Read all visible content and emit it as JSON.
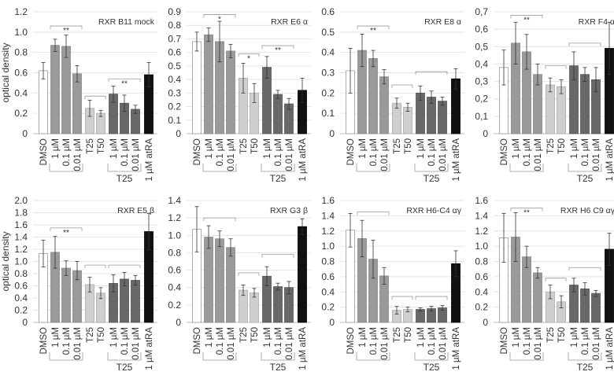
{
  "colors": {
    "dmso": "#ffffff",
    "drug": "#9a9a9a",
    "t": "#cfcfcf",
    "combo": "#686868",
    "atra": "#111111",
    "grid": "#e4e4e4",
    "axis": "#bbbbbb",
    "bracket": "#999999"
  },
  "categories": [
    "DMSO",
    "1 µM",
    "0.1 µM",
    "0.01 µM",
    "T25",
    "T50",
    "1 µM",
    "0.1 µM",
    "0.01 µM",
    "1 µM atRA"
  ],
  "group_label": "T25",
  "chart_data": [
    {
      "type": "bar",
      "title": "RXR B11 mock",
      "ylabel": "optical density",
      "ylim": [
        0,
        1.2
      ],
      "ticks": [
        0,
        0.2,
        0.4,
        0.6,
        0.8,
        1.0,
        1.2
      ],
      "tick_labels": [
        "0",
        "0.2",
        "0.4",
        "0.6",
        "0.8",
        "1.0",
        "1.2"
      ],
      "values": [
        0.62,
        0.87,
        0.86,
        0.59,
        0.25,
        0.2,
        0.39,
        0.3,
        0.24,
        0.58
      ],
      "errors": [
        0.08,
        0.06,
        0.11,
        0.08,
        0.08,
        0.03,
        0.08,
        0.08,
        0.04,
        0.12
      ],
      "brackets": [
        {
          "from": 1,
          "to": 3,
          "y": 1.06,
          "label": "**"
        },
        {
          "from": 4,
          "to": 5,
          "y": 0.37,
          "label": ""
        },
        {
          "from": 6,
          "to": 8,
          "y": 0.54,
          "label": "**"
        }
      ]
    },
    {
      "type": "bar",
      "title": "RXR E6 α",
      "ylabel": "",
      "ylim": [
        0,
        0.9
      ],
      "ticks": [
        0,
        0.1,
        0.2,
        0.3,
        0.4,
        0.5,
        0.6,
        0.7,
        0.8,
        0.9
      ],
      "tick_labels": [
        "0",
        "0.1",
        "0.2",
        "0.3",
        "0.4",
        "0.5",
        "0.6",
        "0.7",
        "0.8",
        "0.9"
      ],
      "values": [
        0.68,
        0.73,
        0.68,
        0.61,
        0.41,
        0.3,
        0.49,
        0.29,
        0.22,
        0.32
      ],
      "errors": [
        0.07,
        0.05,
        0.15,
        0.05,
        0.11,
        0.07,
        0.08,
        0.03,
        0.04,
        0.09
      ],
      "brackets": [
        {
          "from": 1,
          "to": 3,
          "y": 0.88,
          "label": "*"
        },
        {
          "from": 4,
          "to": 5,
          "y": 0.59,
          "label": "*"
        },
        {
          "from": 6,
          "to": 8,
          "y": 0.65,
          "label": "**"
        }
      ]
    },
    {
      "type": "bar",
      "title": "RXR E8 α",
      "ylabel": "",
      "ylim": [
        0,
        0.6
      ],
      "ticks": [
        0,
        0.1,
        0.2,
        0.3,
        0.4,
        0.5,
        0.6
      ],
      "tick_labels": [
        "0",
        "0.1",
        "0.2",
        "0.3",
        "0.4",
        "0.5",
        "0.6"
      ],
      "values": [
        0.31,
        0.41,
        0.37,
        0.28,
        0.15,
        0.13,
        0.2,
        0.18,
        0.16,
        0.27
      ],
      "errors": [
        0.11,
        0.08,
        0.04,
        0.035,
        0.025,
        0.02,
        0.035,
        0.03,
        0.02,
        0.05
      ],
      "brackets": [
        {
          "from": 1,
          "to": 3,
          "y": 0.53,
          "label": "**"
        },
        {
          "from": 4,
          "to": 5,
          "y": 0.24,
          "label": ""
        },
        {
          "from": 6,
          "to": 8,
          "y": 0.305,
          "label": ""
        }
      ]
    },
    {
      "type": "bar",
      "title": "RXR F4 α",
      "ylabel": "",
      "ylim": [
        0,
        0.7
      ],
      "ticks": [
        0,
        0.1,
        0.2,
        0.3,
        0.4,
        0.5,
        0.6,
        0.7
      ],
      "tick_labels": [
        "0",
        "0,1",
        "0,2",
        "0,3",
        "0,4",
        "0,5",
        "0,6",
        "0,7"
      ],
      "values": [
        0.38,
        0.52,
        0.47,
        0.34,
        0.28,
        0.27,
        0.39,
        0.34,
        0.31,
        0.49
      ],
      "errors": [
        0.1,
        0.12,
        0.1,
        0.06,
        0.04,
        0.04,
        0.08,
        0.04,
        0.07,
        0.15
      ],
      "brackets": [
        {
          "from": 1,
          "to": 3,
          "y": 0.68,
          "label": "**"
        },
        {
          "from": 4,
          "to": 5,
          "y": 0.39,
          "label": ""
        },
        {
          "from": 6,
          "to": 8,
          "y": 0.52,
          "label": ""
        }
      ]
    },
    {
      "type": "bar",
      "title": "RXR  E5 β",
      "ylabel": "optical density",
      "ylim": [
        0,
        2.0
      ],
      "ticks": [
        0,
        0.2,
        0.4,
        0.6,
        0.8,
        1.0,
        1.2,
        1.4,
        1.6,
        1.8,
        2.0
      ],
      "tick_labels": [
        "0",
        "0.2",
        "0.4",
        "0.6",
        "0.8",
        "1.0",
        "1.2",
        "1.4",
        "1.6",
        "1.8",
        "2.0"
      ],
      "values": [
        1.13,
        1.15,
        0.89,
        0.85,
        0.62,
        0.48,
        0.64,
        0.71,
        0.69,
        1.49
      ],
      "errors": [
        0.22,
        0.26,
        0.12,
        0.15,
        0.12,
        0.09,
        0.14,
        0.11,
        0.08,
        0.3
      ],
      "brackets": [
        {
          "from": 1,
          "to": 3,
          "y": 1.55,
          "label": "**"
        },
        {
          "from": 4,
          "to": 5,
          "y": 0.94,
          "label": ""
        },
        {
          "from": 6,
          "to": 8,
          "y": 0.94,
          "label": ""
        }
      ]
    },
    {
      "type": "bar",
      "title": "RXR  G3 β",
      "ylabel": "",
      "ylim": [
        0,
        1.4
      ],
      "ticks": [
        0,
        0.2,
        0.4,
        0.6,
        0.8,
        1.0,
        1.2,
        1.4
      ],
      "tick_labels": [
        "0",
        "0.2",
        "0.4",
        "0.6",
        "0.8",
        "1.0",
        "1.2",
        "1.4"
      ],
      "values": [
        1.07,
        0.98,
        0.96,
        0.86,
        0.37,
        0.34,
        0.53,
        0.41,
        0.4,
        1.1
      ],
      "errors": [
        0.26,
        0.13,
        0.09,
        0.1,
        0.06,
        0.05,
        0.11,
        0.04,
        0.07,
        0.09
      ],
      "brackets": [
        {
          "from": 1,
          "to": 3,
          "y": 1.2,
          "label": ""
        },
        {
          "from": 4,
          "to": 5,
          "y": 0.57,
          "label": ""
        },
        {
          "from": 6,
          "to": 8,
          "y": 0.78,
          "label": ""
        }
      ]
    },
    {
      "type": "bar",
      "title": "RXR H6-C4 αγ",
      "ylabel": "",
      "ylim": [
        0,
        1.6
      ],
      "ticks": [
        0,
        0.2,
        0.4,
        0.6,
        0.8,
        1.0,
        1.2,
        1.4,
        1.6
      ],
      "tick_labels": [
        "0",
        "0.2",
        "0.4",
        "0.6",
        "0.8",
        "1.0",
        "1.2",
        "1.4",
        "1.6"
      ],
      "values": [
        1.21,
        1.1,
        0.83,
        0.61,
        0.16,
        0.17,
        0.17,
        0.18,
        0.19,
        0.77
      ],
      "errors": [
        0.22,
        0.24,
        0.25,
        0.11,
        0.05,
        0.03,
        0.02,
        0.03,
        0.03,
        0.17
      ],
      "brackets": [
        {
          "from": 1,
          "to": 3,
          "y": 1.45,
          "label": ""
        },
        {
          "from": 4,
          "to": 5,
          "y": 0.34,
          "label": ""
        },
        {
          "from": 6,
          "to": 8,
          "y": 0.34,
          "label": ""
        }
      ]
    },
    {
      "type": "bar",
      "title": "RXR H6 C9 αγ",
      "ylabel": "",
      "ylim": [
        0,
        1.6
      ],
      "ticks": [
        0,
        0.2,
        0.4,
        0.6,
        0.8,
        1.0,
        1.2,
        1.4,
        1.6
      ],
      "tick_labels": [
        "0",
        "0.2",
        "0.4",
        "0.6",
        "0.8",
        "1.0",
        "1.2",
        "1.4",
        "1.6"
      ],
      "values": [
        1.11,
        1.12,
        0.86,
        0.65,
        0.4,
        0.27,
        0.49,
        0.44,
        0.38,
        0.96
      ],
      "errors": [
        0.32,
        0.32,
        0.14,
        0.07,
        0.09,
        0.08,
        0.09,
        0.08,
        0.04,
        0.21
      ],
      "brackets": [
        {
          "from": 1,
          "to": 3,
          "y": 1.5,
          "label": "**"
        },
        {
          "from": 4,
          "to": 5,
          "y": 0.58,
          "label": ""
        },
        {
          "from": 6,
          "to": 8,
          "y": 0.72,
          "label": ""
        }
      ]
    }
  ]
}
